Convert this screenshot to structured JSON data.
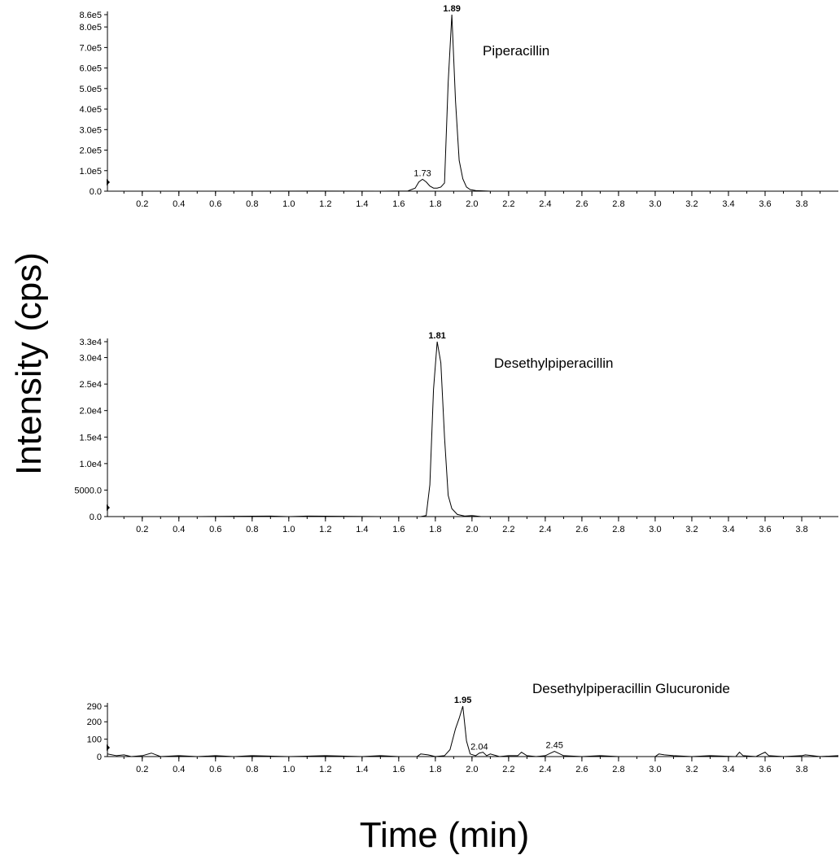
{
  "labels": {
    "y_axis_title": "Intensity (cps)",
    "x_axis_title": "Time (min)"
  },
  "chart_data": [
    {
      "type": "line",
      "panel": "Piperacillin",
      "compound_label": "Piperacillin",
      "x_ticks": [
        "0.2",
        "0.4",
        "0.6",
        "0.8",
        "1.0",
        "1.2",
        "1.4",
        "1.6",
        "1.8",
        "2.0",
        "2.2",
        "2.4",
        "2.6",
        "2.8",
        "3.0",
        "3.2",
        "3.4",
        "3.6",
        "3.8"
      ],
      "y_ticks": [
        {
          "value": 0,
          "label": "0.0"
        },
        {
          "value": 100000,
          "label": "1.0e5"
        },
        {
          "value": 200000,
          "label": "2.0e5"
        },
        {
          "value": 300000,
          "label": "3.0e5"
        },
        {
          "value": 400000,
          "label": "4.0e5"
        },
        {
          "value": 500000,
          "label": "5.0e5"
        },
        {
          "value": 600000,
          "label": "6.0e5"
        },
        {
          "value": 700000,
          "label": "7.0e5"
        },
        {
          "value": 800000,
          "label": "8.0e5"
        },
        {
          "value": 860000,
          "label": "8.6e5"
        }
      ],
      "xlim": [
        0.01,
        4.0
      ],
      "ylim": [
        0,
        860000
      ],
      "peaks": [
        {
          "time": 1.89,
          "label": "1.89",
          "value": 860000
        },
        {
          "time": 1.73,
          "label": "1.73",
          "value": 58000
        }
      ],
      "series": [
        {
          "x": [
            0.01,
            0.3,
            0.8,
            1.2,
            1.5,
            1.65,
            1.69,
            1.71,
            1.73,
            1.75,
            1.77,
            1.79,
            1.81,
            1.83,
            1.85,
            1.87,
            1.89,
            1.91,
            1.93,
            1.95,
            1.97,
            1.99,
            2.02,
            2.1,
            2.5,
            3.0,
            3.5,
            4.0
          ],
          "y": [
            0,
            0,
            0,
            500,
            0,
            1000,
            15000,
            45000,
            58000,
            45000,
            25000,
            15000,
            15000,
            20000,
            40000,
            530000,
            860000,
            440000,
            150000,
            60000,
            20000,
            8000,
            3000,
            0,
            0,
            0,
            0,
            0
          ]
        }
      ]
    },
    {
      "type": "line",
      "panel": "Desethylpiperacillin",
      "compound_label": "Desethylpiperacillin",
      "x_ticks": [
        "0.2",
        "0.4",
        "0.6",
        "0.8",
        "1.0",
        "1.2",
        "1.4",
        "1.6",
        "1.8",
        "2.0",
        "2.2",
        "2.4",
        "2.6",
        "2.8",
        "3.0",
        "3.2",
        "3.4",
        "3.6",
        "3.8"
      ],
      "y_ticks": [
        {
          "value": 0,
          "label": "0.0"
        },
        {
          "value": 5000,
          "label": "5000.0"
        },
        {
          "value": 10000,
          "label": "1.0e4"
        },
        {
          "value": 15000,
          "label": "1.5e4"
        },
        {
          "value": 20000,
          "label": "2.0e4"
        },
        {
          "value": 25000,
          "label": "2.5e4"
        },
        {
          "value": 30000,
          "label": "3.0e4"
        },
        {
          "value": 33000,
          "label": "3.3e4"
        }
      ],
      "xlim": [
        0.01,
        4.0
      ],
      "ylim": [
        0,
        33000
      ],
      "peaks": [
        {
          "time": 1.81,
          "label": "1.81",
          "value": 33000
        }
      ],
      "series": [
        {
          "x": [
            0.01,
            0.5,
            0.9,
            1.0,
            1.1,
            1.5,
            1.72,
            1.75,
            1.77,
            1.79,
            1.81,
            1.83,
            1.85,
            1.87,
            1.89,
            1.92,
            1.96,
            2.0,
            2.05,
            2.5,
            3.0,
            3.5,
            4.0
          ],
          "y": [
            0,
            0,
            100,
            0,
            100,
            0,
            0,
            200,
            6000,
            24000,
            33000,
            29000,
            15000,
            4000,
            1500,
            400,
            100,
            200,
            0,
            0,
            0,
            0,
            0
          ]
        }
      ]
    },
    {
      "type": "line",
      "panel": "Desethylpiperacillin Glucuronide",
      "compound_label": "Desethylpiperacillin Glucuronide",
      "x_ticks": [
        "0.2",
        "0.4",
        "0.6",
        "0.8",
        "1.0",
        "1.2",
        "1.4",
        "1.6",
        "1.8",
        "2.0",
        "2.2",
        "2.4",
        "2.6",
        "2.8",
        "3.0",
        "3.2",
        "3.4",
        "3.6",
        "3.8"
      ],
      "y_ticks": [
        {
          "value": 0,
          "label": "0"
        },
        {
          "value": 100,
          "label": "100"
        },
        {
          "value": 200,
          "label": "200"
        },
        {
          "value": 290,
          "label": "290"
        }
      ],
      "xlim": [
        0.01,
        4.0
      ],
      "ylim": [
        0,
        290
      ],
      "peaks": [
        {
          "time": 1.95,
          "label": "1.95",
          "value": 290
        },
        {
          "time": 2.04,
          "label": "2.04",
          "value": 20
        },
        {
          "time": 2.45,
          "label": "2.45",
          "value": 30
        }
      ],
      "series": [
        {
          "x": [
            0.01,
            0.06,
            0.1,
            0.14,
            0.2,
            0.25,
            0.3,
            0.4,
            0.5,
            0.6,
            0.7,
            0.8,
            1.0,
            1.2,
            1.4,
            1.5,
            1.6,
            1.7,
            1.72,
            1.76,
            1.8,
            1.85,
            1.88,
            1.91,
            1.93,
            1.95,
            1.97,
            1.99,
            2.02,
            2.04,
            2.06,
            2.08,
            2.1,
            2.15,
            2.2,
            2.25,
            2.27,
            2.3,
            2.35,
            2.4,
            2.45,
            2.47,
            2.5,
            2.6,
            2.7,
            2.8,
            3.0,
            3.02,
            3.05,
            3.1,
            3.2,
            3.3,
            3.44,
            3.46,
            3.48,
            3.55,
            3.6,
            3.62,
            3.7,
            3.8,
            3.82,
            3.9,
            4.0
          ],
          "y": [
            15,
            5,
            10,
            0,
            5,
            20,
            0,
            5,
            0,
            5,
            0,
            5,
            0,
            5,
            0,
            5,
            0,
            0,
            15,
            10,
            0,
            5,
            40,
            160,
            220,
            290,
            90,
            15,
            5,
            20,
            25,
            5,
            15,
            0,
            5,
            5,
            25,
            5,
            0,
            5,
            30,
            20,
            5,
            0,
            5,
            0,
            0,
            15,
            10,
            5,
            0,
            5,
            0,
            25,
            5,
            0,
            25,
            5,
            0,
            5,
            10,
            0,
            5
          ]
        }
      ]
    }
  ]
}
